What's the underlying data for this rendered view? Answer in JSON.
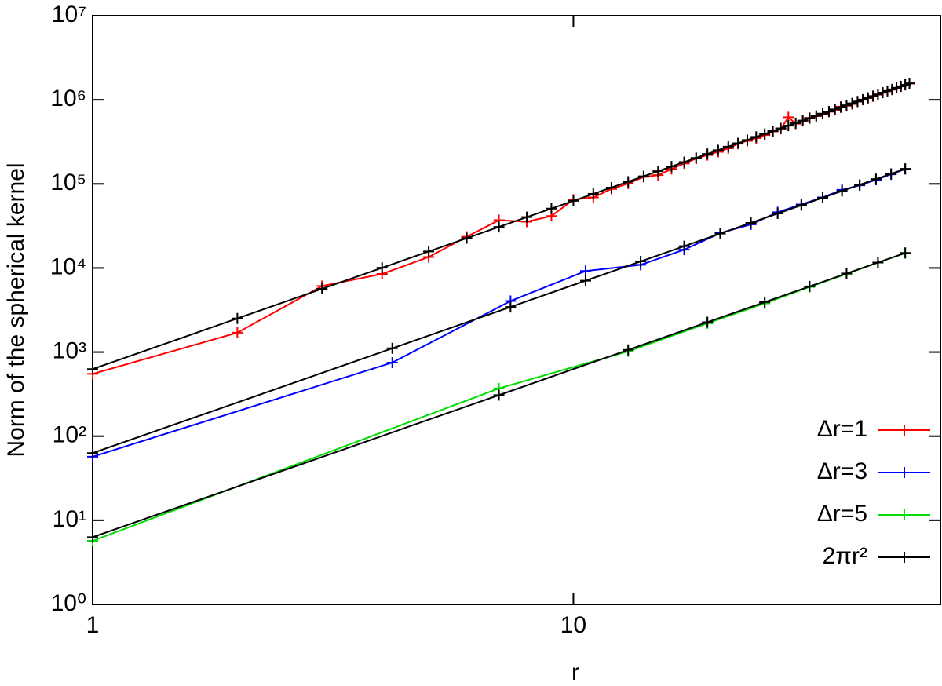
{
  "chart_data": {
    "type": "line",
    "xlabel": "r",
    "ylabel": "Norm of the spherical kernel",
    "xscale": "log",
    "yscale": "log",
    "xlim": [
      1,
      58
    ],
    "ylim": [
      1,
      10000000
    ],
    "xticks": [
      1,
      10
    ],
    "yticks": [
      {
        "value": 1,
        "label": "10⁰"
      },
      {
        "value": 10,
        "label": "10¹"
      },
      {
        "value": 100,
        "label": "10²"
      },
      {
        "value": 1000,
        "label": "10³"
      },
      {
        "value": 10000,
        "label": "10⁴"
      },
      {
        "value": 100000,
        "label": "10⁵"
      },
      {
        "value": 1000000,
        "label": "10⁶"
      },
      {
        "value": 10000000,
        "label": "10⁷"
      }
    ],
    "legend": "bottom-right",
    "series": [
      {
        "name": "Δr=1",
        "color": "#ff0000",
        "x": [
          1,
          2,
          3,
          4,
          5,
          6,
          7,
          8,
          9,
          10,
          11,
          12,
          13,
          14,
          15,
          16,
          17,
          18,
          19,
          20,
          21,
          22,
          23,
          24,
          25,
          26,
          27,
          28,
          29,
          30,
          31,
          32,
          33,
          34,
          35,
          36,
          37,
          38,
          39,
          40,
          41,
          42,
          43,
          44,
          45,
          46,
          47,
          48,
          49,
          50
        ],
        "values": [
          550,
          1700,
          6100,
          8500,
          13500,
          23500,
          37000,
          35500,
          41500,
          65000,
          69000,
          87000,
          101000,
          121000,
          127000,
          150000,
          175000,
          200000,
          220000,
          240000,
          265000,
          300000,
          325000,
          350000,
          380000,
          420000,
          450000,
          620000,
          520000,
          560000,
          610000,
          640000,
          680000,
          720000,
          760000,
          830000,
          850000,
          890000,
          950000,
          1000000,
          1050000,
          1100000,
          1150000,
          1210000,
          1260000,
          1320000,
          1380000,
          1440000,
          1500000,
          1560000
        ]
      },
      {
        "name": "Δr=3",
        "color": "#0000ff",
        "x": [
          1,
          4.2,
          7.4,
          10.6,
          13.8,
          17,
          20.2,
          23.4,
          26.6,
          29.8,
          33,
          36.2,
          39.4,
          42.6,
          45.8,
          49
        ],
        "values": [
          57,
          750,
          4050,
          9200,
          10900,
          16500,
          26000,
          33000,
          46000,
          57000,
          69000,
          85000,
          96000,
          112000,
          130000,
          150000
        ]
      },
      {
        "name": "Δr=5",
        "color": "#00dd00",
        "x": [
          1,
          7,
          13,
          19,
          25,
          31,
          37,
          43,
          49
        ],
        "values": [
          5.7,
          370,
          1020,
          2200,
          3800,
          5950,
          8500,
          11600,
          15000
        ]
      },
      {
        "name": "2πr²",
        "color": "#000000",
        "x": [
          1,
          2,
          3,
          4,
          5,
          6,
          7,
          8,
          9,
          10,
          11,
          12,
          13,
          14,
          15,
          16,
          17,
          18,
          19,
          20,
          21,
          22,
          23,
          24,
          25,
          26,
          27,
          28,
          29,
          30,
          31,
          32,
          33,
          34,
          35,
          36,
          37,
          38,
          39,
          40,
          41,
          42,
          43,
          44,
          45,
          46,
          47,
          48,
          49,
          50,
          null,
          1,
          4.2,
          7.4,
          10.6,
          13.8,
          17,
          20.2,
          23.4,
          26.6,
          29.8,
          33,
          36.2,
          39.4,
          42.6,
          45.8,
          49,
          null,
          1,
          7,
          13,
          19,
          25,
          31,
          37,
          43,
          49
        ],
        "values": [
          628,
          2513,
          5655,
          10053,
          15708,
          22619,
          30788,
          40212,
          50894,
          62832,
          76027,
          90478,
          106186,
          123151,
          141372,
          160850,
          181584,
          203576,
          226824,
          251328,
          277089,
          304107,
          332381,
          361912,
          392700,
          424744,
          458045,
          492603,
          528417,
          565488,
          603816,
          643400,
          684240,
          726338,
          769692,
          814303,
          860170,
          907294,
          955675,
          1005312,
          1056206,
          1108356,
          1161764,
          1216428,
          1272348,
          1329525,
          1387959,
          1447649,
          1508596,
          1570800,
          null,
          63,
          1108,
          3440,
          7060,
          11970,
          18160,
          25640,
          34400,
          44460,
          55800,
          68420,
          82330,
          97540,
          114020,
          131800,
          150860,
          null,
          6.3,
          308,
          1062,
          2268,
          3927,
          6038,
          8602,
          11618,
          15085
        ]
      }
    ]
  }
}
